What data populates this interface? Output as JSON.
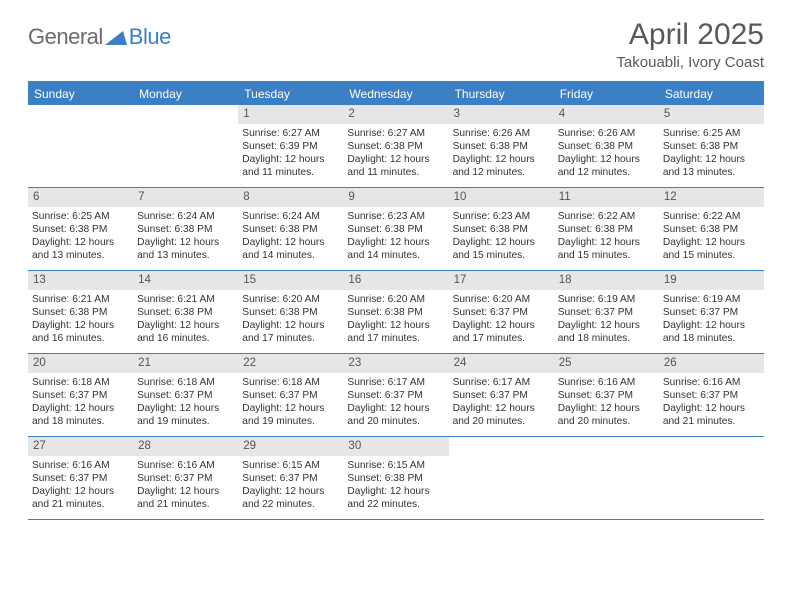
{
  "brand": {
    "name1": "General",
    "name2": "Blue"
  },
  "title": "April 2025",
  "subtitle": "Takouabli, Ivory Coast",
  "header_bg": "#3b7fc4",
  "header_fg": "#ffffff",
  "daynum_bg": "#e6e6e6",
  "page_bg": "#ffffff",
  "text_color": "#333333",
  "dayNames": [
    "Sunday",
    "Monday",
    "Tuesday",
    "Wednesday",
    "Thursday",
    "Friday",
    "Saturday"
  ],
  "weeks": [
    [
      {
        "blank": true
      },
      {
        "blank": true
      },
      {
        "day": "1",
        "sunrise": "Sunrise: 6:27 AM",
        "sunset": "Sunset: 6:39 PM",
        "daylight": "Daylight: 12 hours and 11 minutes."
      },
      {
        "day": "2",
        "sunrise": "Sunrise: 6:27 AM",
        "sunset": "Sunset: 6:38 PM",
        "daylight": "Daylight: 12 hours and 11 minutes."
      },
      {
        "day": "3",
        "sunrise": "Sunrise: 6:26 AM",
        "sunset": "Sunset: 6:38 PM",
        "daylight": "Daylight: 12 hours and 12 minutes."
      },
      {
        "day": "4",
        "sunrise": "Sunrise: 6:26 AM",
        "sunset": "Sunset: 6:38 PM",
        "daylight": "Daylight: 12 hours and 12 minutes."
      },
      {
        "day": "5",
        "sunrise": "Sunrise: 6:25 AM",
        "sunset": "Sunset: 6:38 PM",
        "daylight": "Daylight: 12 hours and 13 minutes."
      }
    ],
    [
      {
        "day": "6",
        "sunrise": "Sunrise: 6:25 AM",
        "sunset": "Sunset: 6:38 PM",
        "daylight": "Daylight: 12 hours and 13 minutes."
      },
      {
        "day": "7",
        "sunrise": "Sunrise: 6:24 AM",
        "sunset": "Sunset: 6:38 PM",
        "daylight": "Daylight: 12 hours and 13 minutes."
      },
      {
        "day": "8",
        "sunrise": "Sunrise: 6:24 AM",
        "sunset": "Sunset: 6:38 PM",
        "daylight": "Daylight: 12 hours and 14 minutes."
      },
      {
        "day": "9",
        "sunrise": "Sunrise: 6:23 AM",
        "sunset": "Sunset: 6:38 PM",
        "daylight": "Daylight: 12 hours and 14 minutes."
      },
      {
        "day": "10",
        "sunrise": "Sunrise: 6:23 AM",
        "sunset": "Sunset: 6:38 PM",
        "daylight": "Daylight: 12 hours and 15 minutes."
      },
      {
        "day": "11",
        "sunrise": "Sunrise: 6:22 AM",
        "sunset": "Sunset: 6:38 PM",
        "daylight": "Daylight: 12 hours and 15 minutes."
      },
      {
        "day": "12",
        "sunrise": "Sunrise: 6:22 AM",
        "sunset": "Sunset: 6:38 PM",
        "daylight": "Daylight: 12 hours and 15 minutes."
      }
    ],
    [
      {
        "day": "13",
        "sunrise": "Sunrise: 6:21 AM",
        "sunset": "Sunset: 6:38 PM",
        "daylight": "Daylight: 12 hours and 16 minutes."
      },
      {
        "day": "14",
        "sunrise": "Sunrise: 6:21 AM",
        "sunset": "Sunset: 6:38 PM",
        "daylight": "Daylight: 12 hours and 16 minutes."
      },
      {
        "day": "15",
        "sunrise": "Sunrise: 6:20 AM",
        "sunset": "Sunset: 6:38 PM",
        "daylight": "Daylight: 12 hours and 17 minutes."
      },
      {
        "day": "16",
        "sunrise": "Sunrise: 6:20 AM",
        "sunset": "Sunset: 6:38 PM",
        "daylight": "Daylight: 12 hours and 17 minutes."
      },
      {
        "day": "17",
        "sunrise": "Sunrise: 6:20 AM",
        "sunset": "Sunset: 6:37 PM",
        "daylight": "Daylight: 12 hours and 17 minutes."
      },
      {
        "day": "18",
        "sunrise": "Sunrise: 6:19 AM",
        "sunset": "Sunset: 6:37 PM",
        "daylight": "Daylight: 12 hours and 18 minutes."
      },
      {
        "day": "19",
        "sunrise": "Sunrise: 6:19 AM",
        "sunset": "Sunset: 6:37 PM",
        "daylight": "Daylight: 12 hours and 18 minutes."
      }
    ],
    [
      {
        "day": "20",
        "sunrise": "Sunrise: 6:18 AM",
        "sunset": "Sunset: 6:37 PM",
        "daylight": "Daylight: 12 hours and 18 minutes."
      },
      {
        "day": "21",
        "sunrise": "Sunrise: 6:18 AM",
        "sunset": "Sunset: 6:37 PM",
        "daylight": "Daylight: 12 hours and 19 minutes."
      },
      {
        "day": "22",
        "sunrise": "Sunrise: 6:18 AM",
        "sunset": "Sunset: 6:37 PM",
        "daylight": "Daylight: 12 hours and 19 minutes."
      },
      {
        "day": "23",
        "sunrise": "Sunrise: 6:17 AM",
        "sunset": "Sunset: 6:37 PM",
        "daylight": "Daylight: 12 hours and 20 minutes."
      },
      {
        "day": "24",
        "sunrise": "Sunrise: 6:17 AM",
        "sunset": "Sunset: 6:37 PM",
        "daylight": "Daylight: 12 hours and 20 minutes."
      },
      {
        "day": "25",
        "sunrise": "Sunrise: 6:16 AM",
        "sunset": "Sunset: 6:37 PM",
        "daylight": "Daylight: 12 hours and 20 minutes."
      },
      {
        "day": "26",
        "sunrise": "Sunrise: 6:16 AM",
        "sunset": "Sunset: 6:37 PM",
        "daylight": "Daylight: 12 hours and 21 minutes."
      }
    ],
    [
      {
        "day": "27",
        "sunrise": "Sunrise: 6:16 AM",
        "sunset": "Sunset: 6:37 PM",
        "daylight": "Daylight: 12 hours and 21 minutes."
      },
      {
        "day": "28",
        "sunrise": "Sunrise: 6:16 AM",
        "sunset": "Sunset: 6:37 PM",
        "daylight": "Daylight: 12 hours and 21 minutes."
      },
      {
        "day": "29",
        "sunrise": "Sunrise: 6:15 AM",
        "sunset": "Sunset: 6:37 PM",
        "daylight": "Daylight: 12 hours and 22 minutes."
      },
      {
        "day": "30",
        "sunrise": "Sunrise: 6:15 AM",
        "sunset": "Sunset: 6:38 PM",
        "daylight": "Daylight: 12 hours and 22 minutes."
      },
      {
        "blank": true
      },
      {
        "blank": true
      },
      {
        "blank": true
      }
    ]
  ]
}
